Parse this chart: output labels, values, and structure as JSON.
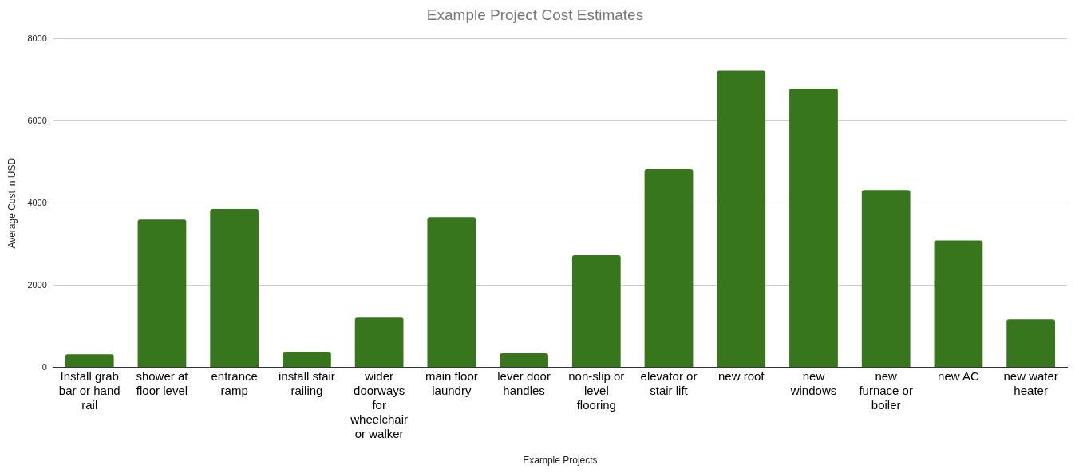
{
  "chart_data": {
    "type": "bar",
    "title": "Example Project Cost Estimates",
    "xlabel": "Example Projects",
    "ylabel": "Average Cost in USD",
    "categories": [
      "Install grab bar or hand rail",
      "shower at floor level",
      "entrance ramp",
      "install stair railing",
      "wider doorways for wheelchair or walker",
      "main floor laundry",
      "lever door handles",
      "non-slip or level flooring",
      "elevator or stair lift",
      "new roof",
      "new windows",
      "new furnace or boiler",
      "new AC",
      "new water heater"
    ],
    "values": [
      320,
      3600,
      3860,
      380,
      1210,
      3660,
      340,
      2730,
      4830,
      7230,
      6790,
      4320,
      3090,
      1170
    ],
    "color": "#38761d",
    "ylim": [
      0,
      8000
    ],
    "yticks": [
      0,
      2000,
      4000,
      6000,
      8000
    ],
    "grid": "y",
    "legend": false
  }
}
